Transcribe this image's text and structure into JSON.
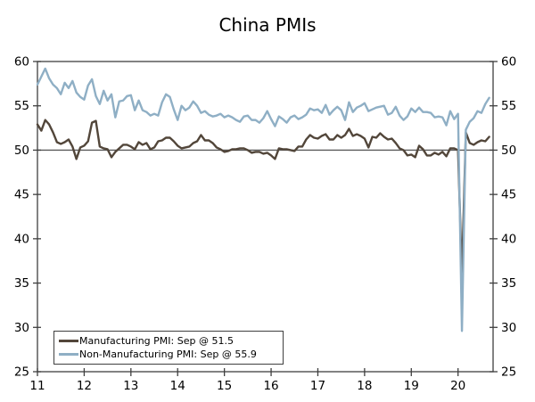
{
  "chart_data": {
    "type": "line",
    "title": "China PMIs",
    "x_start_year": 2011,
    "x_frequency": "monthly",
    "xlim": [
      2011,
      2020.75
    ],
    "ylim": [
      25,
      60
    ],
    "yticks": [
      25,
      30,
      35,
      40,
      45,
      50,
      55,
      60
    ],
    "xtick_values": [
      2011,
      2012,
      2013,
      2014,
      2015,
      2016,
      2017,
      2018,
      2019,
      2020
    ],
    "xtick_labels": [
      "11",
      "12",
      "13",
      "14",
      "15",
      "16",
      "17",
      "18",
      "19",
      "20"
    ],
    "reference_line": 50,
    "grid": false,
    "legend_position": "bottom-left",
    "colors": {
      "axis": "#3f3f3f",
      "reference_line": "#5a5a5a",
      "text": "#000000",
      "background": "#ffffff"
    },
    "series": [
      {
        "name": "Manufacturing PMI",
        "legend": "Manufacturing PMI: Sep @ 51.5",
        "color": "#52463a",
        "values": [
          52.9,
          52.2,
          53.4,
          52.9,
          52.0,
          50.9,
          50.7,
          50.9,
          51.2,
          50.4,
          49.0,
          50.3,
          50.5,
          51.0,
          53.1,
          53.3,
          50.4,
          50.2,
          50.1,
          49.2,
          49.8,
          50.2,
          50.6,
          50.6,
          50.4,
          50.1,
          50.9,
          50.6,
          50.8,
          50.1,
          50.3,
          51.0,
          51.1,
          51.4,
          51.4,
          51.0,
          50.5,
          50.2,
          50.3,
          50.4,
          50.8,
          51.0,
          51.7,
          51.1,
          51.1,
          50.8,
          50.3,
          50.1,
          49.8,
          49.9,
          50.1,
          50.1,
          50.2,
          50.2,
          50.0,
          49.7,
          49.8,
          49.8,
          49.6,
          49.7,
          49.4,
          49.0,
          50.2,
          50.1,
          50.1,
          50.0,
          49.9,
          50.4,
          50.4,
          51.2,
          51.7,
          51.4,
          51.3,
          51.6,
          51.8,
          51.2,
          51.2,
          51.7,
          51.4,
          51.7,
          52.4,
          51.6,
          51.8,
          51.6,
          51.3,
          50.3,
          51.5,
          51.4,
          51.9,
          51.5,
          51.2,
          51.3,
          50.8,
          50.2,
          50.0,
          49.4,
          49.5,
          49.2,
          50.5,
          50.1,
          49.4,
          49.4,
          49.7,
          49.5,
          49.8,
          49.3,
          50.2,
          50.2,
          50.0,
          35.7,
          52.0,
          50.8,
          50.6,
          50.9,
          51.1,
          51.0,
          51.5
        ]
      },
      {
        "name": "Non-Manufacturing PMI",
        "legend": "Non-Manufacturing PMI: Sep @ 55.9",
        "color": "#8fafc5",
        "values": [
          57.4,
          58.3,
          59.2,
          58.1,
          57.4,
          57.0,
          56.3,
          57.6,
          57.0,
          57.8,
          56.5,
          56.0,
          55.7,
          57.3,
          58.0,
          56.1,
          55.2,
          56.7,
          55.6,
          56.3,
          53.7,
          55.5,
          55.6,
          56.1,
          56.2,
          54.5,
          55.6,
          54.5,
          54.3,
          53.9,
          54.1,
          53.9,
          55.4,
          56.3,
          56.0,
          54.6,
          53.4,
          55.0,
          54.5,
          54.8,
          55.5,
          55.0,
          54.2,
          54.4,
          54.0,
          53.8,
          53.9,
          54.1,
          53.7,
          53.9,
          53.7,
          53.4,
          53.2,
          53.8,
          53.9,
          53.4,
          53.4,
          53.1,
          53.6,
          54.4,
          53.5,
          52.7,
          53.8,
          53.5,
          53.1,
          53.7,
          53.9,
          53.5,
          53.7,
          54.0,
          54.7,
          54.5,
          54.6,
          54.2,
          55.1,
          54.0,
          54.5,
          54.9,
          54.5,
          53.4,
          55.4,
          54.3,
          54.8,
          55.0,
          55.3,
          54.4,
          54.6,
          54.8,
          54.9,
          55.0,
          54.0,
          54.2,
          54.9,
          53.9,
          53.4,
          53.8,
          54.7,
          54.3,
          54.8,
          54.3,
          54.3,
          54.2,
          53.7,
          53.8,
          53.7,
          52.8,
          54.4,
          53.5,
          54.1,
          29.6,
          52.3,
          53.2,
          53.6,
          54.4,
          54.2,
          55.2,
          55.9
        ]
      }
    ]
  }
}
